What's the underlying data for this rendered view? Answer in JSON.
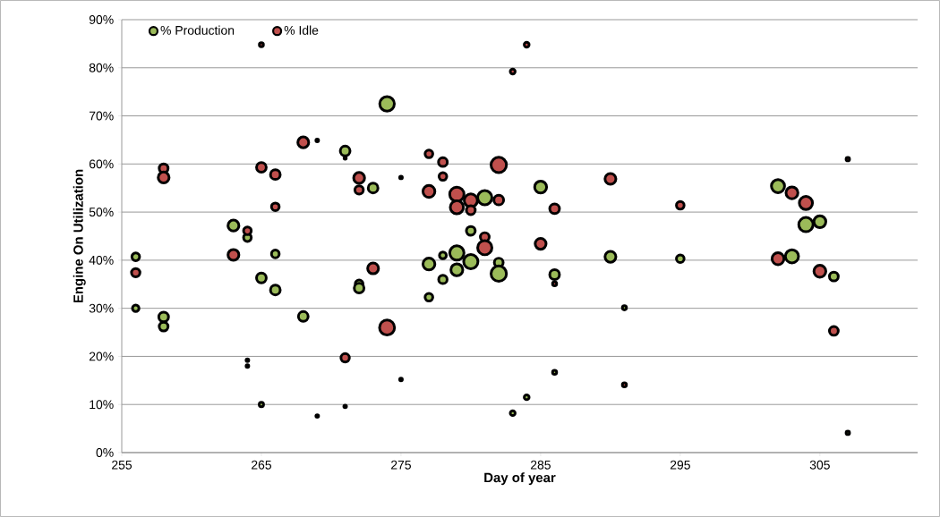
{
  "chart_data": {
    "type": "bubble",
    "xlabel": "Day of year",
    "ylabel": "Engine On Utilization",
    "xlim": [
      255,
      312
    ],
    "xticks": [
      255,
      265,
      275,
      285,
      295,
      305
    ],
    "ylim": [
      0,
      90
    ],
    "yticks": [
      {
        "value": 0,
        "label": "0%"
      },
      {
        "value": 10,
        "label": "10%"
      },
      {
        "value": 20,
        "label": "20%"
      },
      {
        "value": 30,
        "label": "30%"
      },
      {
        "value": 40,
        "label": "40%"
      },
      {
        "value": 50,
        "label": "50%"
      },
      {
        "value": 60,
        "label": "60%"
      },
      {
        "value": 70,
        "label": "70%"
      },
      {
        "value": 80,
        "label": "80%"
      },
      {
        "value": 90,
        "label": "90%"
      }
    ],
    "grid": "y",
    "legend": "top left",
    "marker": "circle",
    "series": [
      {
        "name": "% Production",
        "color": "#9bbb59",
        "x": [
          256,
          256,
          258,
          258,
          263,
          264,
          264,
          265,
          265,
          266,
          266,
          268,
          269,
          271,
          271,
          272,
          272,
          273,
          274,
          275,
          277,
          277,
          278,
          278,
          279,
          279,
          280,
          280,
          281,
          282,
          282,
          283,
          284,
          285,
          286,
          286,
          290,
          291,
          295,
          302,
          303,
          304,
          305,
          306,
          307
        ],
        "values": [
          40.7,
          30.0,
          28.2,
          26.2,
          47.2,
          44.7,
          18.0,
          36.3,
          10.0,
          41.3,
          33.8,
          28.3,
          7.6,
          62.7,
          9.6,
          35.1,
          34.2,
          55.0,
          72.5,
          15.2,
          39.2,
          32.3,
          41.0,
          36.0,
          41.5,
          38.0,
          39.7,
          46.1,
          53.0,
          39.5,
          37.2,
          8.2,
          11.5,
          55.2,
          37.0,
          16.7,
          40.7,
          30.1,
          40.3,
          55.4,
          40.8,
          47.4,
          48.0,
          36.6,
          4.1
        ],
        "sizes": [
          0.25,
          0.18,
          0.4,
          0.33,
          0.5,
          0.25,
          0.03,
          0.4,
          0.08,
          0.25,
          0.4,
          0.4,
          0.03,
          0.4,
          0.03,
          0.25,
          0.4,
          0.4,
          0.9,
          0.03,
          0.6,
          0.25,
          0.2,
          0.3,
          0.86,
          0.6,
          0.86,
          0.33,
          0.86,
          0.33,
          1,
          0.1,
          0.1,
          0.6,
          0.4,
          0.07,
          0.5,
          0.07,
          0.25,
          0.73,
          0.73,
          0.86,
          0.6,
          0.33,
          0.05
        ]
      },
      {
        "name": "% Idle",
        "color": "#c0504d",
        "x": [
          256,
          258,
          258,
          263,
          264,
          264,
          265,
          265,
          266,
          266,
          268,
          269,
          271,
          271,
          272,
          272,
          273,
          274,
          275,
          277,
          277,
          278,
          278,
          279,
          279,
          280,
          280,
          281,
          281,
          282,
          282,
          283,
          284,
          285,
          286,
          286,
          290,
          291,
          295,
          302,
          303,
          304,
          305,
          306,
          307
        ],
        "values": [
          37.4,
          59.1,
          57.2,
          41.1,
          46.1,
          19.2,
          59.3,
          84.8,
          57.8,
          51.1,
          64.5,
          64.9,
          19.7,
          61.2,
          57.1,
          54.6,
          38.3,
          26.0,
          57.2,
          62.1,
          54.3,
          60.4,
          57.4,
          53.7,
          51.0,
          52.4,
          50.4,
          44.8,
          42.6,
          59.8,
          52.5,
          79.2,
          84.8,
          43.4,
          50.7,
          35.1,
          56.9,
          14.1,
          51.4,
          40.3,
          54.0,
          51.9,
          37.7,
          25.3,
          61.0
        ],
        "sizes": [
          0.3,
          0.33,
          0.5,
          0.5,
          0.25,
          0.03,
          0.4,
          0.07,
          0.4,
          0.25,
          0.5,
          0.03,
          0.3,
          0.02,
          0.5,
          0.3,
          0.5,
          0.95,
          0.03,
          0.25,
          0.6,
          0.33,
          0.25,
          0.86,
          0.73,
          0.73,
          0.33,
          0.33,
          0.86,
          1,
          0.4,
          0.1,
          0.1,
          0.5,
          0.4,
          0.07,
          0.5,
          0.07,
          0.25,
          0.6,
          0.6,
          0.73,
          0.6,
          0.33,
          0.05
        ]
      }
    ]
  }
}
